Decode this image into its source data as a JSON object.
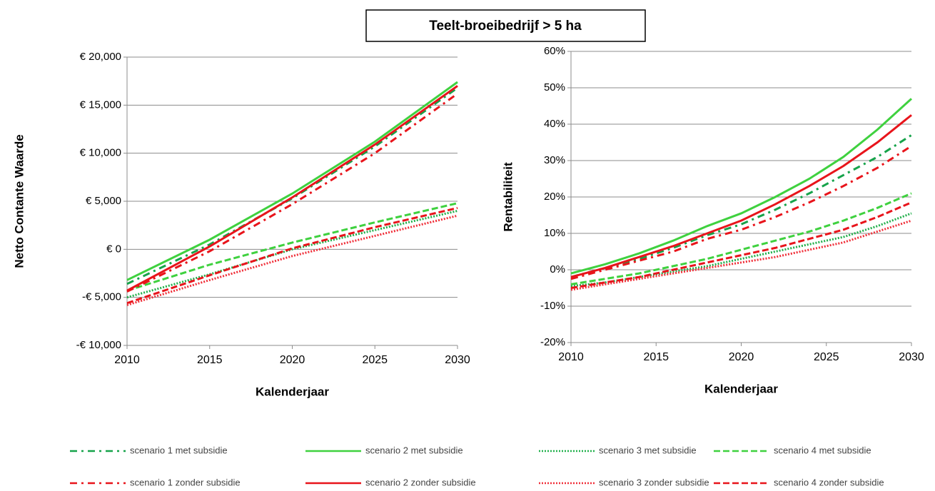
{
  "title": "Teelt-broeibedrijf > 5 ha",
  "legend": [
    {
      "name": "scenario 1 met subsidie",
      "color": "#16a34a",
      "style": "dashdot"
    },
    {
      "name": "scenario 2 met subsidie",
      "color": "#3fd13f",
      "style": "solid"
    },
    {
      "name": "scenario 3 met subsidie",
      "color": "#22b04c",
      "style": "dotted"
    },
    {
      "name": "scenario 4 met subsidie",
      "color": "#3fd13f",
      "style": "dashed"
    },
    {
      "name": "scenario 1 zonder subsidie",
      "color": "#e8141b",
      "style": "dashdot"
    },
    {
      "name": "scenario 2 zonder subsidie",
      "color": "#e8141b",
      "style": "solid"
    },
    {
      "name": "scenario 3 zonder subsidie",
      "color": "#f0303a",
      "style": "dotted"
    },
    {
      "name": "scenario 4 zonder subsidie",
      "color": "#e8141b",
      "style": "dashed"
    }
  ],
  "chart_data": [
    {
      "type": "line",
      "ylabel": "Netto Contante Waarde",
      "xlabel": "Kalenderjaar",
      "grid": true,
      "x": [
        2010,
        2015,
        2020,
        2025,
        2030
      ],
      "xlim": [
        2010,
        2030
      ],
      "xticks": [
        2010,
        2015,
        2020,
        2025,
        2030
      ],
      "ylim": [
        -10000,
        20000
      ],
      "yticks": [
        {
          "value": -10000,
          "label": "-€ 10,000"
        },
        {
          "value": -5000,
          "label": "-€ 5,000"
        },
        {
          "value": 0,
          "label": "€ 0"
        },
        {
          "value": 5000,
          "label": "€ 5,000"
        },
        {
          "value": 10000,
          "label": "€ 10,000"
        },
        {
          "value": 15000,
          "label": "€ 15,000"
        },
        {
          "value": 20000,
          "label": "€ 20,000"
        }
      ],
      "series": [
        {
          "values": [
            -3600,
            500,
            5300,
            10700,
            16800
          ]
        },
        {
          "values": [
            -3200,
            1000,
            5800,
            11200,
            17400
          ]
        },
        {
          "values": [
            -5000,
            -2600,
            0,
            2000,
            4000
          ]
        },
        {
          "values": [
            -4300,
            -1600,
            700,
            2800,
            4800
          ]
        },
        {
          "values": [
            -4400,
            -200,
            4700,
            10000,
            16200
          ]
        },
        {
          "values": [
            -4300,
            300,
            5400,
            10900,
            17000
          ]
        },
        {
          "values": [
            -5800,
            -3200,
            -700,
            1400,
            3500
          ]
        },
        {
          "values": [
            -5600,
            -2700,
            100,
            2300,
            4300
          ]
        }
      ]
    },
    {
      "type": "line",
      "ylabel": "Rentabiliteit",
      "xlabel": "Kalenderjaar",
      "grid": true,
      "x": [
        2010,
        2012,
        2014,
        2016,
        2018,
        2020,
        2022,
        2024,
        2026,
        2028,
        2030
      ],
      "xlim": [
        2010,
        2030
      ],
      "xticks": [
        2010,
        2015,
        2020,
        2025,
        2030
      ],
      "ylim": [
        -20,
        60
      ],
      "yticks": [
        {
          "value": -20,
          "label": "-20%"
        },
        {
          "value": -10,
          "label": "-10%"
        },
        {
          "value": 0,
          "label": "0%"
        },
        {
          "value": 10,
          "label": "10%"
        },
        {
          "value": 20,
          "label": "20%"
        },
        {
          "value": 30,
          "label": "30%"
        },
        {
          "value": 40,
          "label": "40%"
        },
        {
          "value": 50,
          "label": "50%"
        },
        {
          "value": 60,
          "label": "60%"
        }
      ],
      "series": [
        {
          "values": [
            -2,
            0.5,
            3,
            6,
            9.5,
            12.5,
            16.5,
            21,
            26,
            31,
            37
          ]
        },
        {
          "values": [
            -1,
            1.5,
            4.5,
            8,
            12,
            15.5,
            20,
            25,
            31,
            38.5,
            47
          ]
        },
        {
          "values": [
            -4.5,
            -3.5,
            -2,
            -0.5,
            1,
            3,
            5,
            7,
            9,
            12,
            15.5
          ]
        },
        {
          "values": [
            -4,
            -2.5,
            -1,
            1,
            3,
            5.5,
            8,
            10.5,
            13.5,
            17,
            21
          ]
        },
        {
          "values": [
            -2.5,
            0,
            2.5,
            5,
            8.5,
            11,
            14.5,
            18.5,
            23,
            28,
            34
          ]
        },
        {
          "values": [
            -2,
            0.5,
            3.5,
            6.5,
            10,
            13.5,
            18,
            23,
            28.5,
            35,
            42.5
          ]
        },
        {
          "values": [
            -5.5,
            -4,
            -2.5,
            -1,
            0.5,
            2,
            3.5,
            5.5,
            7.5,
            10.5,
            13.5
          ]
        },
        {
          "values": [
            -5,
            -3.5,
            -2,
            0,
            2,
            4,
            6,
            8.5,
            11,
            14.5,
            18.5
          ]
        }
      ]
    }
  ]
}
